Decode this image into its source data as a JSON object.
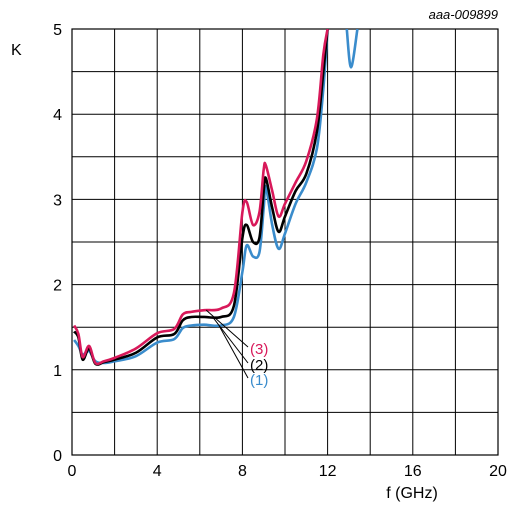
{
  "figure_ref": "aaa-009899",
  "chart_data": {
    "type": "line",
    "title": "",
    "xlabel": "f (GHz)",
    "ylabel": "K",
    "xlim": [
      0,
      20
    ],
    "ylim": [
      0,
      5
    ],
    "x_ticks": [
      "0",
      "4",
      "8",
      "12",
      "16",
      "20"
    ],
    "y_ticks": [
      "0",
      "1",
      "2",
      "3",
      "4",
      "5"
    ],
    "grid": true,
    "series": [
      {
        "name": "(1)",
        "color": "#3a8ccc",
        "points": [
          [
            0.1,
            1.35
          ],
          [
            0.3,
            1.28
          ],
          [
            0.5,
            1.18
          ],
          [
            0.8,
            1.22
          ],
          [
            1.1,
            1.1
          ],
          [
            1.5,
            1.08
          ],
          [
            2,
            1.1
          ],
          [
            3,
            1.16
          ],
          [
            4,
            1.32
          ],
          [
            4.8,
            1.36
          ],
          [
            5.2,
            1.49
          ],
          [
            5.6,
            1.52
          ],
          [
            6.2,
            1.53
          ],
          [
            7.0,
            1.52
          ],
          [
            7.6,
            1.62
          ],
          [
            8.0,
            2.15
          ],
          [
            8.2,
            2.46
          ],
          [
            8.5,
            2.33
          ],
          [
            8.8,
            2.38
          ],
          [
            9.0,
            2.9
          ],
          [
            9.1,
            3.15
          ],
          [
            9.4,
            2.7
          ],
          [
            9.7,
            2.42
          ],
          [
            10.0,
            2.6
          ],
          [
            10.5,
            2.95
          ],
          [
            11.0,
            3.2
          ],
          [
            11.5,
            3.6
          ],
          [
            11.8,
            4.3
          ],
          [
            12.0,
            5.0
          ]
        ]
      },
      {
        "name": "(2)",
        "color": "#000000",
        "points": [
          [
            0.1,
            1.45
          ],
          [
            0.3,
            1.38
          ],
          [
            0.5,
            1.12
          ],
          [
            0.8,
            1.25
          ],
          [
            1.1,
            1.07
          ],
          [
            1.5,
            1.09
          ],
          [
            2,
            1.12
          ],
          [
            3,
            1.2
          ],
          [
            4,
            1.38
          ],
          [
            4.8,
            1.42
          ],
          [
            5.2,
            1.58
          ],
          [
            5.6,
            1.62
          ],
          [
            6.2,
            1.62
          ],
          [
            7.0,
            1.62
          ],
          [
            7.6,
            1.75
          ],
          [
            8.0,
            2.55
          ],
          [
            8.2,
            2.7
          ],
          [
            8.5,
            2.5
          ],
          [
            8.8,
            2.55
          ],
          [
            9.0,
            3.1
          ],
          [
            9.1,
            3.25
          ],
          [
            9.4,
            2.9
          ],
          [
            9.7,
            2.62
          ],
          [
            10.0,
            2.8
          ],
          [
            10.5,
            3.1
          ],
          [
            11.0,
            3.3
          ],
          [
            11.5,
            3.8
          ],
          [
            11.8,
            4.5
          ],
          [
            12.0,
            5.0
          ]
        ]
      },
      {
        "name": "(3)",
        "color": "#d8195a",
        "points": [
          [
            0.1,
            1.52
          ],
          [
            0.3,
            1.42
          ],
          [
            0.5,
            1.15
          ],
          [
            0.8,
            1.28
          ],
          [
            1.1,
            1.08
          ],
          [
            1.5,
            1.1
          ],
          [
            2,
            1.14
          ],
          [
            3,
            1.25
          ],
          [
            4,
            1.43
          ],
          [
            4.8,
            1.48
          ],
          [
            5.2,
            1.65
          ],
          [
            5.6,
            1.68
          ],
          [
            6.2,
            1.7
          ],
          [
            7.0,
            1.72
          ],
          [
            7.6,
            1.9
          ],
          [
            8.0,
            2.85
          ],
          [
            8.2,
            2.97
          ],
          [
            8.5,
            2.7
          ],
          [
            8.8,
            2.85
          ],
          [
            9.0,
            3.35
          ],
          [
            9.1,
            3.4
          ],
          [
            9.4,
            3.1
          ],
          [
            9.7,
            2.8
          ],
          [
            10.0,
            2.95
          ],
          [
            10.5,
            3.2
          ],
          [
            11.0,
            3.45
          ],
          [
            11.5,
            3.95
          ],
          [
            11.8,
            4.7
          ],
          [
            12.0,
            5.0
          ]
        ]
      },
      {
        "name": "",
        "color": "#3a8ccc",
        "points": [
          [
            12.9,
            5.0
          ],
          [
            13.1,
            4.55
          ],
          [
            13.4,
            5.0
          ]
        ]
      }
    ]
  }
}
